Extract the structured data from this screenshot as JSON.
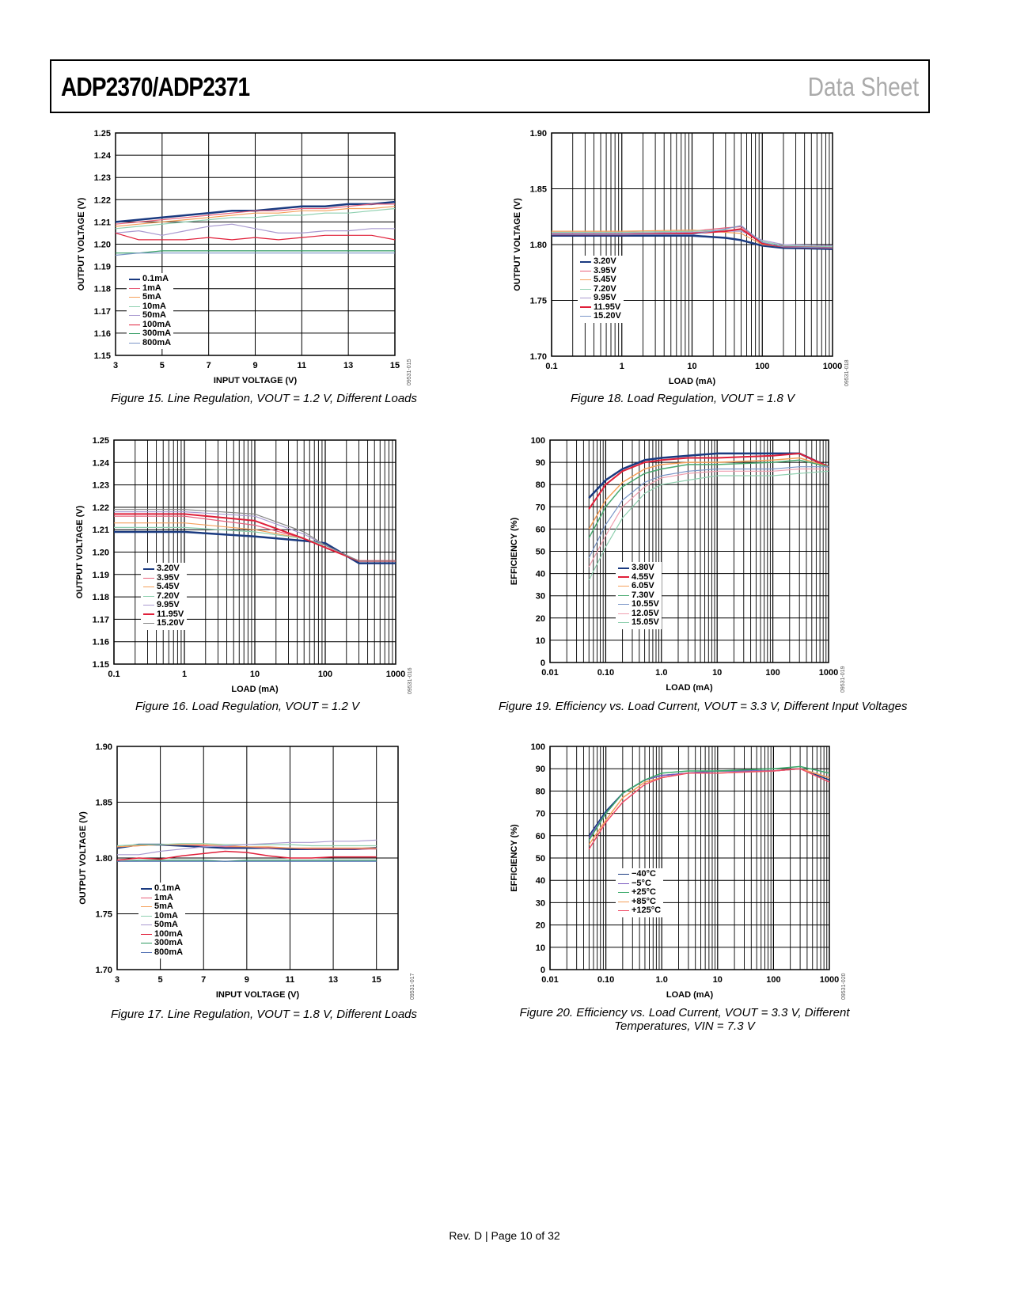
{
  "header": {
    "title": "ADP2370/ADP2371",
    "doc_type": "Data Sheet"
  },
  "footer": "Rev. D | Page 10 of 32",
  "chart_data": [
    {
      "id": "fig15",
      "type": "line",
      "caption": "Figure 15. Line Regulation, VOUT = 1.2 V, Different Loads",
      "code": "09531-015",
      "xlabel": "INPUT VOLTAGE (V)",
      "ylabel": "OUTPUT VOLTAGE (V)",
      "xscale": "linear",
      "xlim": [
        3,
        15
      ],
      "ylim": [
        1.15,
        1.25
      ],
      "xticks": [
        3,
        5,
        7,
        9,
        11,
        13,
        15
      ],
      "yticks": [
        1.15,
        1.16,
        1.17,
        1.18,
        1.19,
        1.2,
        1.21,
        1.22,
        1.23,
        1.24,
        1.25
      ],
      "ydec": 2,
      "grid": true,
      "legend": "lower-left",
      "x": [
        3,
        4,
        5,
        6,
        7,
        8,
        9,
        10,
        11,
        12,
        13,
        14,
        15
      ],
      "series": [
        {
          "name": "0.1mA",
          "color": "#1a3a80",
          "w": 2.5,
          "values": [
            1.21,
            1.211,
            1.212,
            1.213,
            1.214,
            1.215,
            1.215,
            1.216,
            1.217,
            1.217,
            1.218,
            1.218,
            1.219
          ]
        },
        {
          "name": "1mA",
          "color": "#e8607a",
          "w": 1.2,
          "values": [
            1.209,
            1.21,
            1.211,
            1.212,
            1.213,
            1.214,
            1.215,
            1.215,
            1.216,
            1.216,
            1.217,
            1.218,
            1.218
          ]
        },
        {
          "name": "5mA",
          "color": "#f5a05a",
          "w": 1.2,
          "values": [
            1.208,
            1.209,
            1.21,
            1.211,
            1.212,
            1.213,
            1.214,
            1.214,
            1.215,
            1.215,
            1.216,
            1.216,
            1.217
          ]
        },
        {
          "name": "10mA",
          "color": "#8fd0b0",
          "w": 1.2,
          "values": [
            1.207,
            1.208,
            1.209,
            1.21,
            1.211,
            1.212,
            1.212,
            1.213,
            1.213,
            1.214,
            1.214,
            1.215,
            1.216
          ]
        },
        {
          "name": "50mA",
          "color": "#a99ad0",
          "w": 1.2,
          "values": [
            1.205,
            1.206,
            1.204,
            1.206,
            1.208,
            1.209,
            1.207,
            1.205,
            1.205,
            1.206,
            1.206,
            1.207,
            1.207
          ]
        },
        {
          "name": "100mA",
          "color": "#e0203a",
          "w": 1.2,
          "values": [
            1.205,
            1.202,
            1.202,
            1.202,
            1.203,
            1.202,
            1.203,
            1.202,
            1.203,
            1.204,
            1.204,
            1.204,
            1.202
          ]
        },
        {
          "name": "300mA",
          "color": "#2e9a60",
          "w": 1.2,
          "values": [
            1.196,
            1.196,
            1.197,
            1.197,
            1.197,
            1.197,
            1.197,
            1.197,
            1.197,
            1.197,
            1.197,
            1.197,
            1.197
          ]
        },
        {
          "name": "800mA",
          "color": "#7b96c8",
          "w": 1.2,
          "values": [
            1.195,
            1.196,
            1.196,
            1.196,
            1.196,
            1.196,
            1.196,
            1.196,
            1.196,
            1.196,
            1.196,
            1.196,
            1.196
          ]
        }
      ]
    },
    {
      "id": "fig18",
      "type": "line",
      "caption": "Figure 18. Load Regulation, VOUT = 1.8 V",
      "code": "09531-018",
      "xlabel": "LOAD (mA)",
      "ylabel": "OUTPUT VOLTAGE (V)",
      "xscale": "log",
      "xlim": [
        0.1,
        1000
      ],
      "ylim": [
        1.7,
        1.9
      ],
      "xticks": [
        0.1,
        1,
        10,
        100,
        1000
      ],
      "xticklabels": [
        "0.1",
        "1",
        "10",
        "100",
        "1000"
      ],
      "yticks": [
        1.7,
        1.75,
        1.8,
        1.85,
        1.9
      ],
      "ydec": 2,
      "grid": true,
      "legend": "lower-left",
      "x": [
        0.1,
        1,
        10,
        30,
        50,
        100,
        200,
        1000
      ],
      "series": [
        {
          "name": "3.20V",
          "color": "#1a3a80",
          "w": 2.5,
          "values": [
            1.808,
            1.808,
            1.808,
            1.806,
            1.804,
            1.799,
            1.797,
            1.796
          ]
        },
        {
          "name": "3.95V",
          "color": "#e8607a",
          "w": 1.2,
          "values": [
            1.811,
            1.811,
            1.812,
            1.815,
            1.816,
            1.801,
            1.798,
            1.797
          ]
        },
        {
          "name": "5.45V",
          "color": "#f5a05a",
          "w": 1.2,
          "values": [
            1.812,
            1.812,
            1.813,
            1.811,
            1.81,
            1.8,
            1.798,
            1.797
          ]
        },
        {
          "name": "7.20V",
          "color": "#8fd0b0",
          "w": 1.2,
          "values": [
            1.811,
            1.811,
            1.812,
            1.813,
            1.813,
            1.803,
            1.799,
            1.798
          ]
        },
        {
          "name": "9.95V",
          "color": "#a99ad0",
          "w": 1.2,
          "values": [
            1.81,
            1.81,
            1.811,
            1.812,
            1.812,
            1.804,
            1.8,
            1.799
          ]
        },
        {
          "name": "11.95V",
          "color": "#e0203a",
          "w": 2,
          "values": [
            1.809,
            1.809,
            1.81,
            1.812,
            1.814,
            1.801,
            1.798,
            1.797
          ]
        },
        {
          "name": "15.20V",
          "color": "#7b96c8",
          "w": 1.2,
          "values": [
            1.809,
            1.809,
            1.809,
            1.814,
            1.817,
            1.802,
            1.798,
            1.797
          ]
        }
      ]
    },
    {
      "id": "fig16",
      "type": "line",
      "caption": "Figure 16. Load Regulation, VOUT = 1.2 V",
      "code": "09531-016",
      "xlabel": "LOAD (mA)",
      "ylabel": "OUTPUT VOLTAGE (V)",
      "xscale": "log",
      "xlim": [
        0.1,
        1000
      ],
      "ylim": [
        1.15,
        1.25
      ],
      "xticks": [
        0.1,
        1,
        10,
        100,
        1000
      ],
      "xticklabels": [
        "0.1",
        "1",
        "10",
        "100",
        "1000"
      ],
      "yticks": [
        1.15,
        1.16,
        1.17,
        1.18,
        1.19,
        1.2,
        1.21,
        1.22,
        1.23,
        1.24,
        1.25
      ],
      "ydec": 2,
      "grid": true,
      "legend": "lower-left",
      "x": [
        0.1,
        1,
        10,
        50,
        100,
        300,
        1000
      ],
      "series": [
        {
          "name": "3.20V",
          "color": "#1a3a80",
          "w": 2.5,
          "values": [
            1.209,
            1.209,
            1.207,
            1.205,
            1.204,
            1.195,
            1.195
          ]
        },
        {
          "name": "3.95V",
          "color": "#e8607a",
          "w": 1.2,
          "values": [
            1.216,
            1.216,
            1.212,
            1.206,
            1.202,
            1.196,
            1.196
          ]
        },
        {
          "name": "5.45V",
          "color": "#f5a05a",
          "w": 1.2,
          "values": [
            1.213,
            1.213,
            1.21,
            1.206,
            1.202,
            1.196,
            1.196
          ]
        },
        {
          "name": "7.20V",
          "color": "#8fd0b0",
          "w": 1.2,
          "values": [
            1.211,
            1.211,
            1.209,
            1.206,
            1.203,
            1.196,
            1.196
          ]
        },
        {
          "name": "9.95V",
          "color": "#a99ad0",
          "w": 1.2,
          "values": [
            1.218,
            1.218,
            1.216,
            1.208,
            1.203,
            1.196,
            1.196
          ]
        },
        {
          "name": "11.95V",
          "color": "#e0203a",
          "w": 2,
          "values": [
            1.217,
            1.217,
            1.214,
            1.206,
            1.202,
            1.196,
            1.196
          ]
        },
        {
          "name": "15.20V",
          "color": "#888888",
          "w": 1.2,
          "values": [
            1.219,
            1.219,
            1.217,
            1.209,
            1.203,
            1.196,
            1.196
          ]
        }
      ]
    },
    {
      "id": "fig19",
      "type": "line",
      "caption": "Figure 19. Efficiency vs. Load Current, VOUT = 3.3 V, Different Input Voltages",
      "code": "09531-019",
      "xlabel": "LOAD (mA)",
      "ylabel": "EFFICIENCY (%)",
      "xscale": "log",
      "xlim": [
        0.01,
        1000
      ],
      "ylim": [
        0,
        100
      ],
      "xticks": [
        0.01,
        0.1,
        1,
        10,
        100,
        1000
      ],
      "xticklabels": [
        "0.01",
        "0.10",
        "1.0",
        "10",
        "100",
        "1000"
      ],
      "yticks": [
        0,
        10,
        20,
        30,
        40,
        50,
        60,
        70,
        80,
        90,
        100
      ],
      "ydec": 0,
      "grid": true,
      "legend": "lower-center",
      "x": [
        0.05,
        0.1,
        0.2,
        0.5,
        1,
        3,
        10,
        100,
        300,
        1000
      ],
      "series": [
        {
          "name": "3.80V",
          "color": "#1a3a80",
          "w": 2.5,
          "values": [
            74,
            82,
            87,
            91,
            92,
            93,
            94,
            94,
            94,
            88
          ]
        },
        {
          "name": "4.55V",
          "color": "#e0203a",
          "w": 2,
          "values": [
            69,
            80,
            86,
            90,
            91,
            92,
            92,
            93,
            94,
            88
          ]
        },
        {
          "name": "6.05V",
          "color": "#f5a05a",
          "w": 1.5,
          "values": [
            60,
            73,
            81,
            87,
            89,
            90,
            90,
            91,
            92,
            88
          ]
        },
        {
          "name": "7.30V",
          "color": "#4aaa70",
          "w": 1.5,
          "values": [
            56,
            70,
            79,
            85,
            87,
            89,
            89,
            90,
            91,
            88
          ]
        },
        {
          "name": "10.55V",
          "color": "#7b96c8",
          "w": 1.2,
          "values": [
            47,
            62,
            73,
            81,
            84,
            86,
            87,
            87,
            88,
            88
          ]
        },
        {
          "name": "12.05V",
          "color": "#f0a0b0",
          "w": 1.2,
          "values": [
            43,
            57,
            70,
            79,
            83,
            85,
            86,
            86,
            87,
            87
          ]
        },
        {
          "name": "15.05V",
          "color": "#90d0b0",
          "w": 1.2,
          "values": [
            37,
            52,
            65,
            76,
            80,
            82,
            84,
            84,
            85,
            86
          ]
        }
      ]
    },
    {
      "id": "fig17",
      "type": "line",
      "caption": "Figure 17. Line Regulation, VOUT = 1.8 V, Different Loads",
      "code": "09531-017",
      "xlabel": "INPUT VOLTAGE (V)",
      "ylabel": "OUTPUT VOLTAGE (V)",
      "xscale": "linear",
      "xlim": [
        3,
        16
      ],
      "ylim": [
        1.7,
        1.9
      ],
      "xticks": [
        3,
        5,
        7,
        9,
        11,
        13,
        15
      ],
      "yticks": [
        1.7,
        1.75,
        1.8,
        1.85,
        1.9
      ],
      "ydec": 2,
      "grid": true,
      "legend": "lower-left",
      "x": [
        3,
        4,
        5,
        6,
        7,
        8,
        9,
        10,
        11,
        12,
        13,
        14,
        15
      ],
      "series": [
        {
          "name": "0.1mA",
          "color": "#1a3a80",
          "w": 2.5,
          "values": [
            1.809,
            1.812,
            1.812,
            1.811,
            1.81,
            1.809,
            1.809,
            1.809,
            1.808,
            1.808,
            1.808,
            1.808,
            1.809
          ]
        },
        {
          "name": "1mA",
          "color": "#e8607a",
          "w": 1.2,
          "values": [
            1.81,
            1.811,
            1.812,
            1.812,
            1.811,
            1.81,
            1.81,
            1.809,
            1.809,
            1.808,
            1.808,
            1.808,
            1.808
          ]
        },
        {
          "name": "5mA",
          "color": "#f5a05a",
          "w": 1.2,
          "values": [
            1.81,
            1.811,
            1.812,
            1.812,
            1.812,
            1.811,
            1.81,
            1.81,
            1.809,
            1.809,
            1.809,
            1.809,
            1.809
          ]
        },
        {
          "name": "10mA",
          "color": "#8fd0b0",
          "w": 1.2,
          "values": [
            1.811,
            1.812,
            1.812,
            1.813,
            1.813,
            1.812,
            1.812,
            1.812,
            1.812,
            1.811,
            1.811,
            1.811,
            1.811
          ]
        },
        {
          "name": "50mA",
          "color": "#a99ad0",
          "w": 1.2,
          "values": [
            1.803,
            1.803,
            1.806,
            1.808,
            1.81,
            1.811,
            1.812,
            1.813,
            1.814,
            1.814,
            1.815,
            1.815,
            1.816
          ]
        },
        {
          "name": "100mA",
          "color": "#e0203a",
          "w": 1.5,
          "values": [
            1.798,
            1.8,
            1.799,
            1.802,
            1.804,
            1.806,
            1.805,
            1.802,
            1.8,
            1.8,
            1.801,
            1.801,
            1.801
          ]
        },
        {
          "name": "300mA",
          "color": "#2e9a60",
          "w": 1.2,
          "values": [
            1.797,
            1.798,
            1.798,
            1.798,
            1.798,
            1.797,
            1.798,
            1.798,
            1.798,
            1.798,
            1.798,
            1.798,
            1.798
          ]
        },
        {
          "name": "800mA",
          "color": "#4a6ab0",
          "w": 1.2,
          "values": [
            1.797,
            1.797,
            1.797,
            1.797,
            1.797,
            1.797,
            1.797,
            1.797,
            1.797,
            1.797,
            1.797,
            1.797,
            1.797
          ]
        }
      ]
    },
    {
      "id": "fig20",
      "type": "line",
      "caption": "Figure 20. Efficiency vs. Load Current, VOUT = 3.3 V, Different Temperatures, VIN = 7.3 V",
      "code": "09531-020",
      "xlabel": "LOAD (mA)",
      "ylabel": "EFFICIENCY (%)",
      "xscale": "log",
      "xlim": [
        0.01,
        1000
      ],
      "ylim": [
        0,
        100
      ],
      "xticks": [
        0.01,
        0.1,
        1,
        10,
        100,
        1000
      ],
      "xticklabels": [
        "0.01",
        "0.10",
        "1.0",
        "10",
        "100",
        "1000"
      ],
      "yticks": [
        0,
        10,
        20,
        30,
        40,
        50,
        60,
        70,
        80,
        90,
        100
      ],
      "ydec": 0,
      "grid": true,
      "legend": "lower-center",
      "x": [
        0.05,
        0.1,
        0.2,
        0.5,
        1,
        3,
        10,
        100,
        300,
        1000
      ],
      "series": [
        {
          "name": "−40°C",
          "color": "#1a3a80",
          "w": 1.5,
          "values": [
            60,
            71,
            79,
            85,
            87,
            88,
            89,
            89,
            90,
            85
          ]
        },
        {
          "name": "−5°C",
          "color": "#7a5ac0",
          "w": 1.5,
          "values": [
            59,
            70,
            79,
            85,
            87,
            88,
            89,
            89,
            90,
            86
          ]
        },
        {
          "name": "+25°C",
          "color": "#3aaa6a",
          "w": 1.5,
          "values": [
            58,
            70,
            79,
            85,
            88,
            89,
            89,
            90,
            91,
            88
          ]
        },
        {
          "name": "+85°C",
          "color": "#f5a05a",
          "w": 1.5,
          "values": [
            56,
            67,
            77,
            84,
            86,
            88,
            88,
            89,
            90,
            86
          ]
        },
        {
          "name": "+125°C",
          "color": "#f0506a",
          "w": 1.5,
          "values": [
            54,
            66,
            75,
            83,
            86,
            88,
            88,
            89,
            90,
            84
          ]
        }
      ]
    }
  ]
}
